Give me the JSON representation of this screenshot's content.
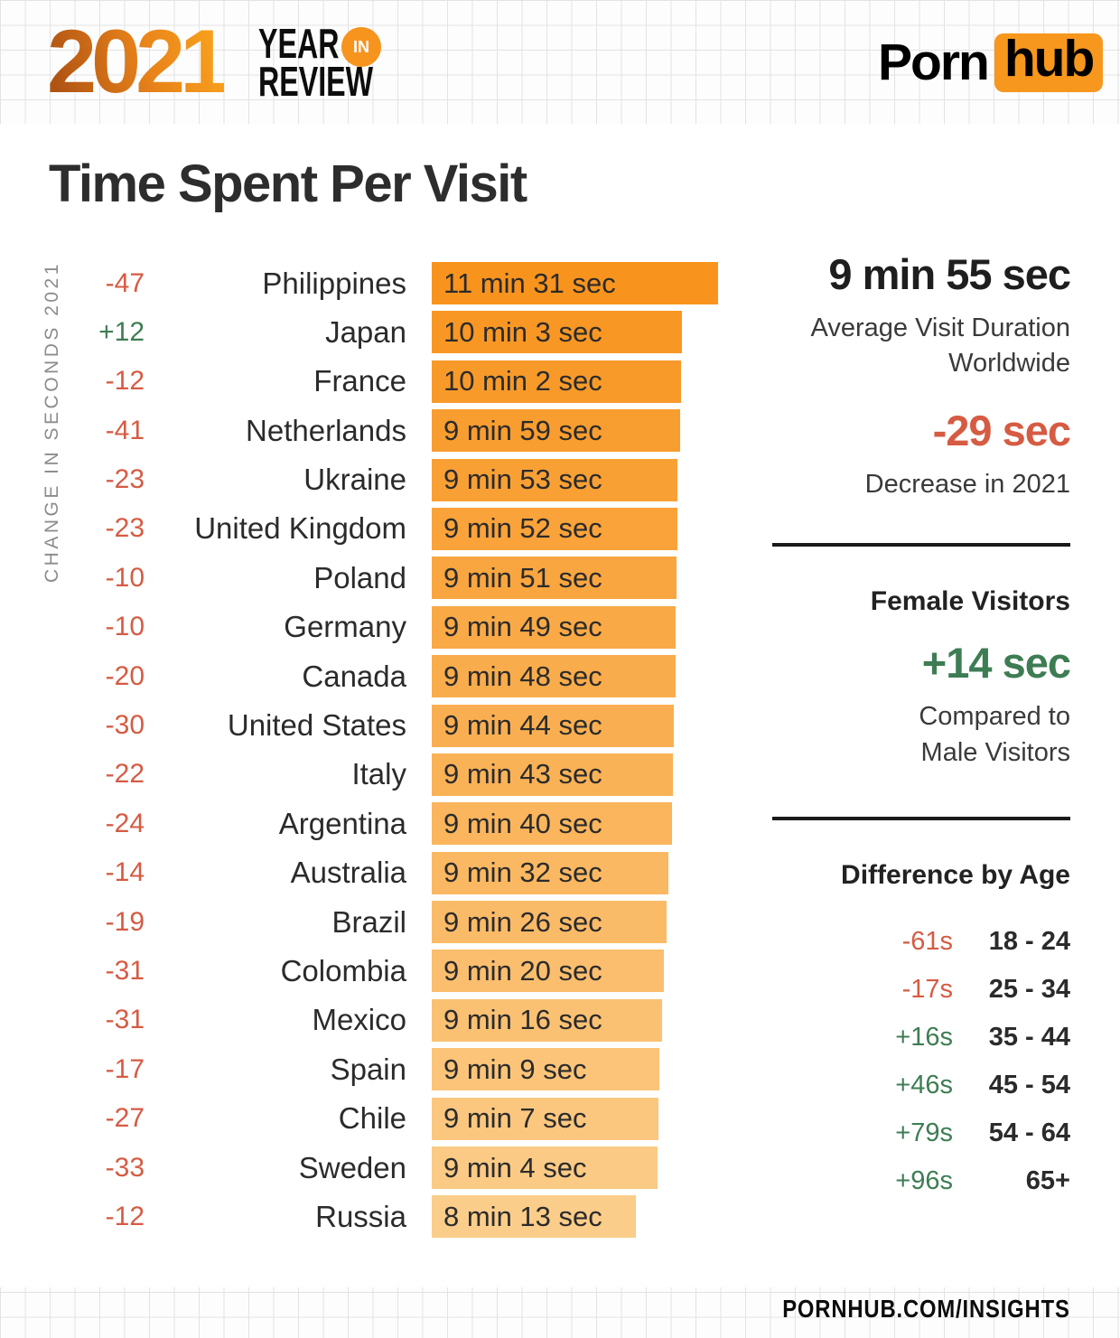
{
  "header": {
    "year": "2021",
    "review_line1": "YEAR",
    "review_badge": "IN",
    "review_line2": "REVIEW",
    "brand_left": "Porn",
    "brand_right": "hub"
  },
  "title": "Time Spent Per Visit",
  "chart_data": {
    "type": "bar",
    "orientation": "horizontal",
    "title": "Time Spent Per Visit",
    "axis_label": "CHANGE IN SECONDS 2021",
    "unit": "seconds",
    "xlim": [
      0,
      691
    ],
    "categories": [
      "Philippines",
      "Japan",
      "France",
      "Netherlands",
      "Ukraine",
      "United Kingdom",
      "Poland",
      "Germany",
      "Canada",
      "United States",
      "Italy",
      "Argentina",
      "Australia",
      "Brazil",
      "Colombia",
      "Mexico",
      "Spain",
      "Chile",
      "Sweden",
      "Russia"
    ],
    "series": [
      {
        "name": "Average time spent per visit (seconds)",
        "values": [
          691,
          603,
          602,
          599,
          593,
          592,
          591,
          589,
          588,
          584,
          583,
          580,
          572,
          566,
          560,
          556,
          549,
          547,
          544,
          493
        ],
        "labels": [
          "11 min 31 sec",
          "10 min 3 sec",
          "10 min 2 sec",
          "9 min 59 sec",
          "9 min 53 sec",
          "9 min 52 sec",
          "9 min 51 sec",
          "9 min 49 sec",
          "9 min 48 sec",
          "9 min 44 sec",
          "9 min 43 sec",
          "9 min 40 sec",
          "9 min 32 sec",
          "9 min 26 sec",
          "9 min 20 sec",
          "9 min 16 sec",
          "9 min 9 sec",
          "9 min 7 sec",
          "9 min 4 sec",
          "8 min 13 sec"
        ]
      },
      {
        "name": "Change in seconds 2021",
        "values": [
          -47,
          12,
          -12,
          -41,
          -23,
          -23,
          -10,
          -10,
          -20,
          -30,
          -22,
          -24,
          -14,
          -19,
          -31,
          -31,
          -17,
          -27,
          -33,
          -12
        ],
        "labels": [
          "-47",
          "+12",
          "-12",
          "-41",
          "-23",
          "-23",
          "-10",
          "-10",
          "-20",
          "-30",
          "-22",
          "-24",
          "-14",
          "-19",
          "-31",
          "-31",
          "-17",
          "-27",
          "-33",
          "-12"
        ]
      }
    ],
    "legend": "none",
    "grid": "off"
  },
  "sidebar": {
    "worldwide": {
      "value": "9 min 55 sec",
      "label": "Average Visit Duration Worldwide"
    },
    "decrease": {
      "value": "-29 sec",
      "label": "Decrease in 2021"
    },
    "female": {
      "heading": "Female Visitors",
      "value": "+14 sec",
      "label": "Compared to Male Visitors"
    },
    "age": {
      "heading": "Difference by Age",
      "rows": [
        {
          "diff": "-61s",
          "range": "18 - 24",
          "positive": false
        },
        {
          "diff": "-17s",
          "range": "25 - 34",
          "positive": false
        },
        {
          "diff": "+16s",
          "range": "35 - 44",
          "positive": true
        },
        {
          "diff": "+46s",
          "range": "45 - 54",
          "positive": true
        },
        {
          "diff": "+79s",
          "range": "54 - 64",
          "positive": true
        },
        {
          "diff": "+96s",
          "range": "65+",
          "positive": true
        }
      ]
    }
  },
  "footer": {
    "text": "PORNHUB.COM/INSIGHTS"
  },
  "colors": {
    "bar_top": "#f8941e",
    "bar_bottom": "#fbcd8a",
    "negative": "#d65b43",
    "positive": "#3e7d54",
    "brand_orange": "#f7971d",
    "text_dark": "#2b2b2b",
    "axis_gray": "#8c8c8c"
  }
}
